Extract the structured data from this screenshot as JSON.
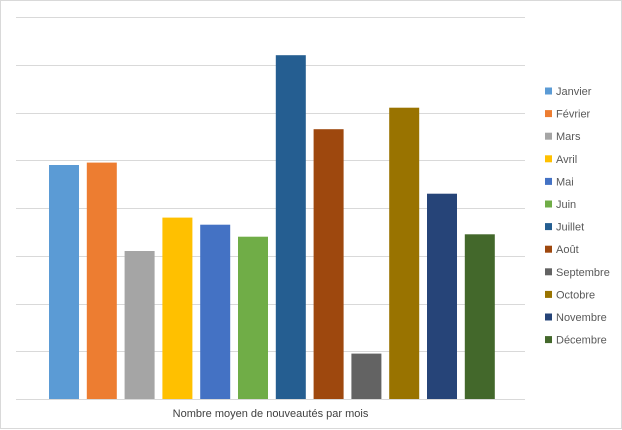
{
  "chart_data": {
    "type": "bar",
    "xlabel": "Nombre moyen de nouveautés par mois",
    "ylabel": "",
    "ylim": [
      0,
      8
    ],
    "grid": true,
    "legend_position": "right",
    "categories": [
      "Janvier",
      "Février",
      "Mars",
      "Avril",
      "Mai",
      "Juin",
      "Juillet",
      "Août",
      "Septembre",
      "Octobre",
      "Novembre",
      "Décembre"
    ],
    "values": [
      4.9,
      4.95,
      3.1,
      3.8,
      3.65,
      3.4,
      7.2,
      5.65,
      0.95,
      6.1,
      4.3,
      3.45
    ],
    "colors": [
      "#5b9bd5",
      "#ed7d31",
      "#a5a5a5",
      "#ffc000",
      "#4472c4",
      "#70ad47",
      "#255e91",
      "#9e480e",
      "#636363",
      "#997300",
      "#264478",
      "#43682b"
    ]
  }
}
